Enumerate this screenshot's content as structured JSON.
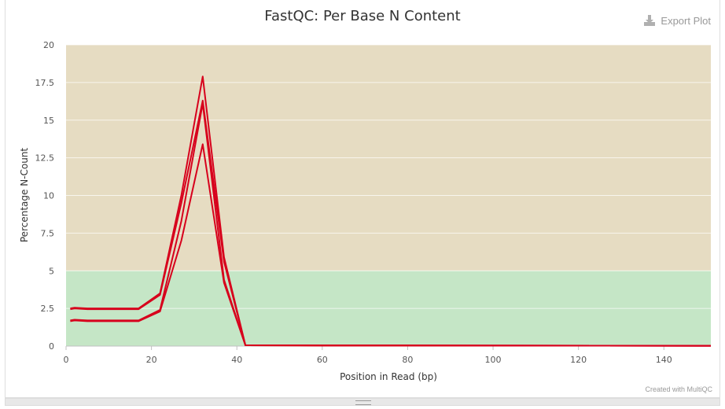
{
  "header": {
    "title": "FastQC: Per Base N Content",
    "export_label": "Export Plot"
  },
  "footer": {
    "credit": "Created with MultiQC"
  },
  "colors": {
    "warn_band": "#e6dcc2",
    "pass_band": "#c5e6c6",
    "line": "#d7001c"
  },
  "chart_data": {
    "type": "line",
    "title": "FastQC: Per Base N Content",
    "xlabel": "Position in Read (bp)",
    "ylabel": "Percentage N-Count",
    "xlim": [
      0,
      151
    ],
    "ylim": [
      0,
      20
    ],
    "x_ticks": [
      "0",
      "20",
      "40",
      "60",
      "80",
      "100",
      "120",
      "140"
    ],
    "y_ticks": [
      "0",
      "2.5",
      "5",
      "7.5",
      "10",
      "12.5",
      "15",
      "17.5",
      "20"
    ],
    "bands": [
      {
        "from": 0,
        "to": 5,
        "status": "pass"
      },
      {
        "from": 5,
        "to": 20,
        "status": "warn"
      }
    ],
    "grid": true,
    "series": [
      {
        "x": [
          1,
          2,
          5,
          10,
          17,
          22,
          27,
          32,
          37,
          42,
          60,
          100,
          151
        ],
        "y": [
          2.5,
          2.55,
          2.5,
          2.5,
          2.5,
          3.5,
          10.0,
          17.9,
          5.9,
          0.05,
          0.04,
          0.03,
          0.02
        ]
      },
      {
        "x": [
          1,
          2,
          5,
          10,
          17,
          22,
          27,
          32,
          37,
          42,
          60,
          100,
          151
        ],
        "y": [
          2.45,
          2.5,
          2.45,
          2.45,
          2.45,
          3.4,
          9.5,
          16.3,
          5.6,
          0.05,
          0.04,
          0.03,
          0.02
        ]
      },
      {
        "x": [
          1,
          2,
          5,
          10,
          17,
          22,
          27,
          32,
          37,
          42,
          60,
          100,
          151
        ],
        "y": [
          1.7,
          1.75,
          1.7,
          1.7,
          1.7,
          2.4,
          8.3,
          16.1,
          4.4,
          0.05,
          0.04,
          0.03,
          0.02
        ]
      },
      {
        "x": [
          1,
          2,
          5,
          10,
          17,
          22,
          27,
          32,
          37,
          42,
          60,
          100,
          151
        ],
        "y": [
          1.65,
          1.7,
          1.65,
          1.65,
          1.65,
          2.3,
          7.0,
          13.4,
          4.2,
          0.05,
          0.04,
          0.03,
          0.02
        ]
      }
    ]
  }
}
